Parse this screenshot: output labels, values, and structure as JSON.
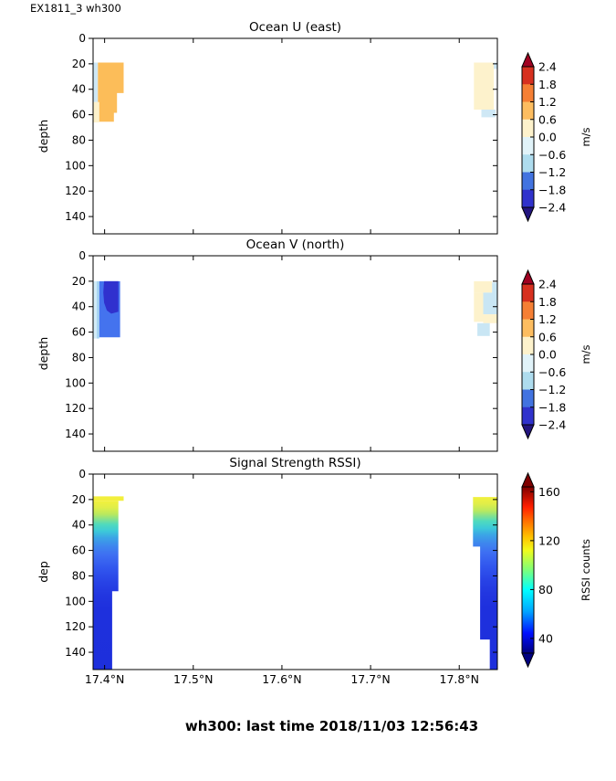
{
  "header": {
    "annotation": "EX1811_3 wh300"
  },
  "footer": {
    "status_line": "wh300: last time 2018/11/03 12:56:43"
  },
  "chart_data": [
    {
      "type": "heatmap",
      "title": "Ocean U (east)",
      "ylabel": "depth",
      "xlim": [
        17.387,
        17.843
      ],
      "ylim": [
        0,
        153.6
      ],
      "yticks": [
        0,
        20,
        40,
        60,
        80,
        100,
        120,
        140
      ],
      "xticks": [
        17.4,
        17.5,
        17.6,
        17.7,
        17.8
      ],
      "xtick_labels": [
        "17.4°N",
        "17.5°N",
        "17.6°N",
        "17.7°N",
        "17.8°N"
      ],
      "show_xtick_labels": false,
      "colorbar": {
        "style": "discrete",
        "unit": "m/s",
        "vmin": -2.4,
        "vmax": 2.4,
        "ticks": [
          {
            "v": 2.4,
            "label": "2.4"
          },
          {
            "v": 1.8,
            "label": "1.8"
          },
          {
            "v": 1.2,
            "label": "1.2"
          },
          {
            "v": 0.6,
            "label": "0.6"
          },
          {
            "v": 0.0,
            "label": "0.0"
          },
          {
            "v": -0.6,
            "label": "−0.6"
          },
          {
            "v": -1.2,
            "label": "−1.2"
          },
          {
            "v": -1.8,
            "label": "−1.8"
          },
          {
            "v": -2.4,
            "label": "−2.4"
          }
        ],
        "segment_colors_top_to_bottom": [
          "#d7301f",
          "#f57f34",
          "#fdbd60",
          "#fdf2cc",
          "#e1f3f9",
          "#aedcee",
          "#4273e0",
          "#3032cc"
        ],
        "over_color": "#a00021",
        "under_color": "#23157f"
      },
      "patches": [
        {
          "name": "u-left-lightblue-strip",
          "color": "#cfe8f5",
          "points": [
            [
              17.387,
              19
            ],
            [
              17.3925,
              19
            ],
            [
              17.3925,
              50
            ],
            [
              17.387,
              50
            ]
          ]
        },
        {
          "name": "u-left-cream-strip",
          "color": "#fdf2cc",
          "points": [
            [
              17.387,
              50
            ],
            [
              17.394,
              50
            ],
            [
              17.394,
              66
            ],
            [
              17.387,
              66
            ]
          ]
        },
        {
          "name": "u-left-orange-blob",
          "color": "#fcbd59",
          "points": [
            [
              17.3925,
              19
            ],
            [
              17.4215,
              19
            ],
            [
              17.4215,
              43
            ],
            [
              17.414,
              43
            ],
            [
              17.414,
              58.5
            ],
            [
              17.4105,
              58.5
            ],
            [
              17.4105,
              65.5
            ],
            [
              17.394,
              65.5
            ],
            [
              17.394,
              50
            ],
            [
              17.3925,
              50
            ]
          ]
        },
        {
          "name": "u-right-cream-blob",
          "color": "#fdf2cc",
          "points": [
            [
              17.8165,
              19
            ],
            [
              17.839,
              19
            ],
            [
              17.839,
              56
            ],
            [
              17.8165,
              56
            ]
          ]
        },
        {
          "name": "u-right-lightblue-top",
          "color": "#cfe8f5",
          "points": [
            [
              17.839,
              19
            ],
            [
              17.843,
              19
            ],
            [
              17.843,
              24
            ],
            [
              17.839,
              24
            ]
          ]
        },
        {
          "name": "u-right-lightblue-bottom",
          "color": "#cfe8f5",
          "points": [
            [
              17.825,
              56
            ],
            [
              17.841,
              56
            ],
            [
              17.841,
              62
            ],
            [
              17.825,
              62
            ]
          ]
        }
      ]
    },
    {
      "type": "heatmap",
      "title": "Ocean V (north)",
      "ylabel": "depth",
      "xlim": [
        17.387,
        17.843
      ],
      "ylim": [
        0,
        153.6
      ],
      "yticks": [
        0,
        20,
        40,
        60,
        80,
        100,
        120,
        140
      ],
      "xticks": [
        17.4,
        17.5,
        17.6,
        17.7,
        17.8
      ],
      "xtick_labels": [
        "17.4°N",
        "17.5°N",
        "17.6°N",
        "17.7°N",
        "17.8°N"
      ],
      "show_xtick_labels": false,
      "colorbar": {
        "style": "discrete",
        "unit": "m/s",
        "vmin": -2.4,
        "vmax": 2.4,
        "ticks": [
          {
            "v": 2.4,
            "label": "2.4"
          },
          {
            "v": 1.8,
            "label": "1.8"
          },
          {
            "v": 1.2,
            "label": "1.2"
          },
          {
            "v": 0.6,
            "label": "0.6"
          },
          {
            "v": 0.0,
            "label": "0.0"
          },
          {
            "v": -0.6,
            "label": "−0.6"
          },
          {
            "v": -1.2,
            "label": "−1.2"
          },
          {
            "v": -1.8,
            "label": "−1.8"
          },
          {
            "v": -2.4,
            "label": "−2.4"
          }
        ],
        "segment_colors_top_to_bottom": [
          "#d7301f",
          "#f57f34",
          "#fdbd60",
          "#fdf2cc",
          "#e1f3f9",
          "#aedcee",
          "#4273e0",
          "#3032cc"
        ],
        "over_color": "#a00021",
        "under_color": "#23157f"
      },
      "patches": [
        {
          "name": "v-left-palestblue-strip",
          "color": "#d3ecf8",
          "points": [
            [
              17.387,
              20
            ],
            [
              17.391,
              20
            ],
            [
              17.391,
              65
            ],
            [
              17.387,
              65
            ]
          ]
        },
        {
          "name": "v-left-lightblue-strip",
          "color": "#a8d6f2",
          "points": [
            [
              17.391,
              20
            ],
            [
              17.394,
              20
            ],
            [
              17.394,
              65
            ],
            [
              17.391,
              65
            ]
          ]
        },
        {
          "name": "v-left-mediumblue",
          "color": "#4473ee",
          "points": [
            [
              17.394,
              20
            ],
            [
              17.4175,
              20
            ],
            [
              17.4175,
              64
            ],
            [
              17.394,
              64
            ]
          ]
        },
        {
          "name": "v-left-darkblue-blob",
          "color": "#3031ce",
          "points": [
            [
              17.3995,
              20
            ],
            [
              17.4155,
              20
            ],
            [
              17.4155,
              44
            ],
            [
              17.4075,
              45.5
            ],
            [
              17.4025,
              43
            ],
            [
              17.3995,
              37
            ],
            [
              17.3985,
              29
            ],
            [
              17.399,
              23
            ]
          ]
        },
        {
          "name": "v-right-cream-top",
          "color": "#fdf2cc",
          "points": [
            [
              17.8165,
              20
            ],
            [
              17.837,
              20
            ],
            [
              17.837,
              29
            ],
            [
              17.8165,
              29
            ]
          ]
        },
        {
          "name": "v-right-lightblue-corner",
          "color": "#c9e6f4",
          "points": [
            [
              17.837,
              21
            ],
            [
              17.843,
              21
            ],
            [
              17.843,
              33
            ],
            [
              17.837,
              33
            ]
          ]
        },
        {
          "name": "v-right-lightblue-mid",
          "color": "#c9e6f4",
          "points": [
            [
              17.827,
              29
            ],
            [
              17.843,
              29
            ],
            [
              17.843,
              46
            ],
            [
              17.827,
              46
            ]
          ]
        },
        {
          "name": "v-right-cream-left",
          "color": "#fdf2cc",
          "points": [
            [
              17.8165,
              29
            ],
            [
              17.827,
              29
            ],
            [
              17.827,
              52
            ],
            [
              17.8165,
              52
            ]
          ]
        },
        {
          "name": "v-right-cream-bottom",
          "color": "#fdf2cc",
          "points": [
            [
              17.827,
              46
            ],
            [
              17.843,
              46
            ],
            [
              17.843,
              53
            ],
            [
              17.827,
              53
            ]
          ]
        },
        {
          "name": "v-right-lightblue-tab",
          "color": "#c9e6f4",
          "points": [
            [
              17.8205,
              53
            ],
            [
              17.8345,
              53
            ],
            [
              17.8345,
              63
            ],
            [
              17.8205,
              63
            ]
          ]
        }
      ]
    },
    {
      "type": "heatmap",
      "title": "Signal Strength RSSI)",
      "ylabel": "dep",
      "xlim": [
        17.387,
        17.843
      ],
      "ylim": [
        0,
        153.6
      ],
      "yticks": [
        0,
        20,
        40,
        60,
        80,
        100,
        120,
        140
      ],
      "xticks": [
        17.4,
        17.5,
        17.6,
        17.7,
        17.8
      ],
      "xtick_labels": [
        "17.4°N",
        "17.5°N",
        "17.6°N",
        "17.7°N",
        "17.8°N"
      ],
      "show_xtick_labels": true,
      "colorbar": {
        "style": "gradient",
        "unit": "RSSI counts",
        "vmin": 28,
        "vmax": 164,
        "ticks": [
          {
            "v": 160,
            "label": "160"
          },
          {
            "v": 120,
            "label": "120"
          },
          {
            "v": 80,
            "label": "80"
          },
          {
            "v": 40,
            "label": "40"
          }
        ],
        "gradient_top_to_bottom": [
          [
            0,
            "#7f0000"
          ],
          [
            0.12,
            "#ff1e00"
          ],
          [
            0.2,
            "#ff6a00"
          ],
          [
            0.3,
            "#ffc100"
          ],
          [
            0.38,
            "#f2fb1b"
          ],
          [
            0.5,
            "#7dff7a"
          ],
          [
            0.62,
            "#00ffff"
          ],
          [
            0.75,
            "#00a4ff"
          ],
          [
            0.88,
            "#0010ff"
          ],
          [
            1,
            "#000080"
          ]
        ],
        "over_color": "#7f0000",
        "under_color": "#000080"
      },
      "patches": [
        {
          "name": "rssi-left-yellow-cap",
          "color": "#f2ef3c",
          "points": [
            [
              17.387,
              17.5
            ],
            [
              17.4215,
              17.5
            ],
            [
              17.4215,
              21
            ],
            [
              17.387,
              21
            ]
          ]
        },
        {
          "name": "rssi-left-column",
          "gradient": [
            [
              0,
              "#f2f13c"
            ],
            [
              0.04,
              "#e0ee49"
            ],
            [
              0.08,
              "#b8e95f"
            ],
            [
              0.11,
              "#83e18f"
            ],
            [
              0.14,
              "#4fdabe"
            ],
            [
              0.18,
              "#3cc9d9"
            ],
            [
              0.22,
              "#3ba4e6"
            ],
            [
              0.27,
              "#3e85ee"
            ],
            [
              0.32,
              "#3e6ff2"
            ],
            [
              0.4,
              "#3156ee"
            ],
            [
              0.48,
              "#2843e6"
            ],
            [
              0.56,
              "#2236e0"
            ],
            [
              0.64,
              "#1e30dd"
            ],
            [
              1,
              "#1d2fdc"
            ]
          ],
          "points": [
            [
              17.387,
              21
            ],
            [
              17.4155,
              21
            ],
            [
              17.4155,
              92
            ],
            [
              17.4085,
              92
            ],
            [
              17.4085,
              153.6
            ],
            [
              17.387,
              153.6
            ]
          ]
        },
        {
          "name": "rssi-right-column",
          "gradient": [
            [
              0,
              "#f2f13c"
            ],
            [
              0.04,
              "#e0ee49"
            ],
            [
              0.08,
              "#b8e95f"
            ],
            [
              0.11,
              "#83e18f"
            ],
            [
              0.14,
              "#4fdabe"
            ],
            [
              0.18,
              "#3cc9d9"
            ],
            [
              0.22,
              "#3ba4e6"
            ],
            [
              0.27,
              "#3e85ee"
            ],
            [
              0.32,
              "#3e6ff2"
            ],
            [
              0.4,
              "#3156ee"
            ],
            [
              0.48,
              "#2843e6"
            ],
            [
              0.56,
              "#2236e0"
            ],
            [
              0.64,
              "#1e30dd"
            ],
            [
              1,
              "#1d2fdc"
            ]
          ],
          "points": [
            [
              17.8155,
              18
            ],
            [
              17.843,
              18
            ],
            [
              17.843,
              153.6
            ],
            [
              17.8345,
              153.6
            ],
            [
              17.8345,
              130
            ],
            [
              17.8235,
              130
            ],
            [
              17.8235,
              57
            ],
            [
              17.8155,
              57
            ]
          ]
        }
      ]
    }
  ]
}
